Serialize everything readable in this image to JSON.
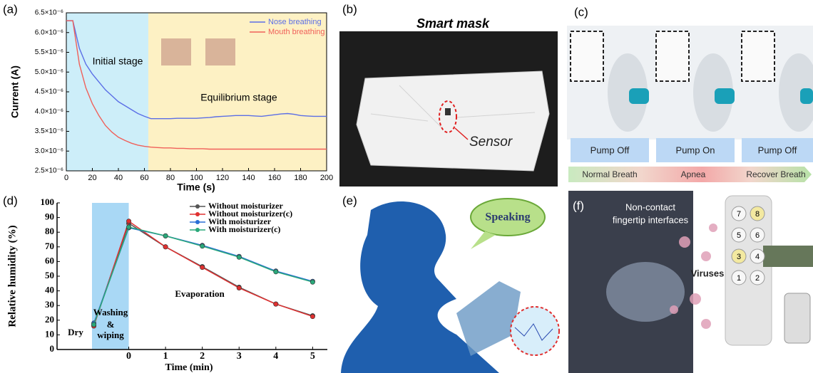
{
  "chart_data": [
    {
      "type": "line",
      "panel_label": "(a)",
      "x_label": "Time (s)",
      "y_label": "Current (A)",
      "x": [
        0,
        5,
        10,
        15,
        20,
        25,
        30,
        35,
        40,
        45,
        50,
        55,
        60,
        65,
        70,
        75,
        80,
        85,
        90,
        95,
        100,
        105,
        110,
        115,
        120,
        125,
        130,
        135,
        140,
        145,
        150,
        155,
        160,
        165,
        170,
        175,
        180,
        185,
        190,
        195,
        200
      ],
      "series": [
        {
          "name": "Nose breathing",
          "color": "#5b6ee6",
          "values": [
            6.3e-06,
            6.3e-06,
            5.6e-06,
            5.2e-06,
            4.95e-06,
            4.75e-06,
            4.55e-06,
            4.4e-06,
            4.25e-06,
            4.15e-06,
            4.05e-06,
            3.95e-06,
            3.88e-06,
            3.82e-06,
            3.82e-06,
            3.82e-06,
            3.82e-06,
            3.83e-06,
            3.83e-06,
            3.83e-06,
            3.83e-06,
            3.84e-06,
            3.85e-06,
            3.87e-06,
            3.88e-06,
            3.89e-06,
            3.9e-06,
            3.9e-06,
            3.9e-06,
            3.89e-06,
            3.88e-06,
            3.9e-06,
            3.92e-06,
            3.94e-06,
            3.95e-06,
            3.93e-06,
            3.9e-06,
            3.89e-06,
            3.88e-06,
            3.88e-06,
            3.88e-06
          ]
        },
        {
          "name": "Mouth breathing",
          "color": "#f0605a",
          "values": [
            6.3e-06,
            6.3e-06,
            5.2e-06,
            4.6e-06,
            4.2e-06,
            3.9e-06,
            3.65e-06,
            3.48e-06,
            3.35e-06,
            3.27e-06,
            3.2e-06,
            3.15e-06,
            3.12e-06,
            3.1e-06,
            3.09e-06,
            3.08e-06,
            3.08e-06,
            3.07e-06,
            3.07e-06,
            3.06e-06,
            3.06e-06,
            3.06e-06,
            3.05e-06,
            3.05e-06,
            3.05e-06,
            3.05e-06,
            3.05e-06,
            3.05e-06,
            3.05e-06,
            3.05e-06,
            3.05e-06,
            3.05e-06,
            3.05e-06,
            3.05e-06,
            3.05e-06,
            3.05e-06,
            3.05e-06,
            3.05e-06,
            3.05e-06,
            3.05e-06,
            3.05e-06
          ]
        }
      ],
      "regions": [
        {
          "x": [
            0,
            63
          ],
          "color": "#cdeef9"
        },
        {
          "x": [
            63,
            200
          ],
          "color": "#fdf1c4"
        }
      ],
      "annotations": [
        "Initial stage",
        "Equilibrium stage"
      ],
      "xlim": [
        0,
        200
      ],
      "xticks": [
        0,
        20,
        40,
        60,
        80,
        100,
        120,
        140,
        160,
        180,
        200
      ],
      "ylim": [
        2.5e-06,
        6.5e-06
      ],
      "yticks": [
        {
          "value": 2.5e-06,
          "label": "2.5×10⁻⁶"
        },
        {
          "value": 3e-06,
          "label": "3.0×10⁻⁶"
        },
        {
          "value": 3.5e-06,
          "label": "3.5×10⁻⁶"
        },
        {
          "value": 4e-06,
          "label": "4.0×10⁻⁶"
        },
        {
          "value": 4.5e-06,
          "label": "4.5×10⁻⁶"
        },
        {
          "value": 5e-06,
          "label": "5.0×10⁻⁶"
        },
        {
          "value": 5.5e-06,
          "label": "5.5×10⁻⁶"
        },
        {
          "value": 6e-06,
          "label": "6.0×10⁻⁶"
        },
        {
          "value": 6.5e-06,
          "label": "6.5×10⁻⁶"
        }
      ],
      "markers": false
    },
    {
      "type": "line",
      "panel_label": "(d)",
      "x_label": "Time (min)",
      "y_label": "Relative humidity (%)",
      "x": [
        -0.95,
        0,
        1,
        2,
        3,
        4,
        5
      ],
      "series": [
        {
          "name": "Without moisturizer",
          "color": "#555555",
          "values": [
            17,
            86,
            70,
            56.5,
            42.5,
            31,
            23
          ]
        },
        {
          "name": "Without moisturizer(c)",
          "color": "#e03030",
          "values": [
            16,
            87.5,
            70,
            56,
            42,
            31,
            22.5
          ]
        },
        {
          "name": "With moisturizer",
          "color": "#2a6fd6",
          "values": [
            18,
            83,
            77.5,
            71,
            63.5,
            53.5,
            46.5
          ]
        },
        {
          "name": "With moisturizer(c)",
          "color": "#2aa87a",
          "values": [
            17,
            83.5,
            77.5,
            70.5,
            63,
            53,
            46
          ]
        }
      ],
      "regions": [
        {
          "x": [
            -1,
            0
          ],
          "color": "#a9d8f5"
        }
      ],
      "annotations": [
        "Dry",
        "Washing",
        "&",
        "wiping",
        "Evaporation"
      ],
      "xlim": [
        -1.95,
        5.4
      ],
      "xticks": [
        0,
        1,
        2,
        3,
        4,
        5
      ],
      "ylim": [
        0,
        100
      ],
      "yticks": [
        0,
        10,
        20,
        30,
        40,
        50,
        60,
        70,
        80,
        90,
        100
      ],
      "markers": true
    }
  ],
  "panels": {
    "b": {
      "label": "(b)",
      "title": "Smart mask",
      "sensor": "Sensor"
    },
    "c": {
      "label": "(c)",
      "pumps": [
        "Pump Off",
        "Pump On",
        "Pump Off"
      ],
      "stages": [
        "Normal Breath",
        "Apnea",
        "Recover Breath"
      ]
    },
    "e": {
      "label": "(e)",
      "bubble": "Speaking"
    },
    "f": {
      "label": "(f)",
      "caption": [
        "Non-contact",
        "fingertip interfaces"
      ],
      "viruses": "Viruses",
      "keys": [
        "7",
        "8",
        "5",
        "6",
        "3",
        "4",
        "1",
        "2"
      ]
    }
  }
}
